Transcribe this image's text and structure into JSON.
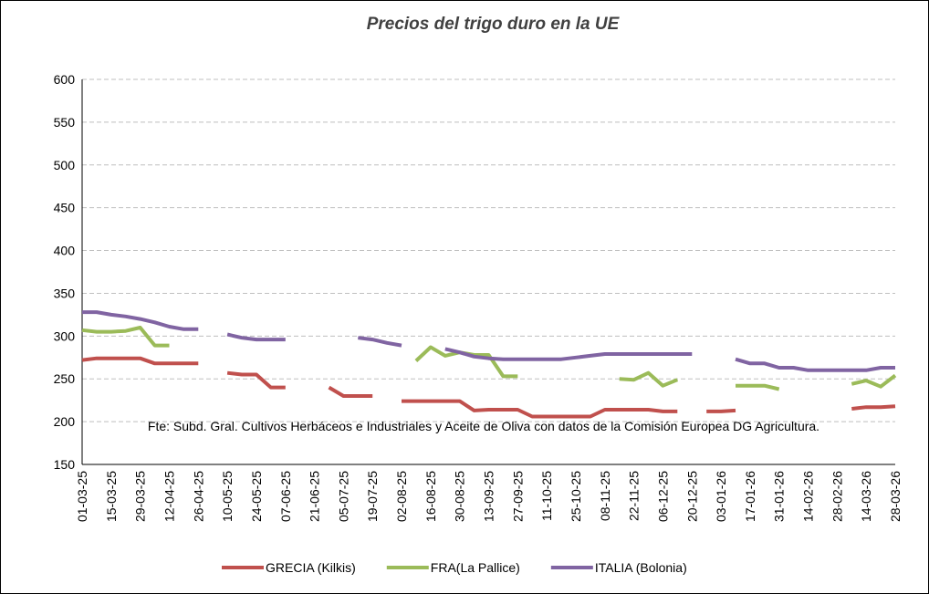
{
  "chart_data": {
    "type": "line",
    "title": "Precios del trigo duro en la UE",
    "annotation": "Fte: Subd. Gral. Cultivos Herbáceos e Industriales y Aceite de Oliva con datos de la Comisión Europea DG Agricultura.",
    "categories": [
      "01-03-25",
      null,
      "15-03-25",
      null,
      "29-03-25",
      null,
      "12-04-25",
      null,
      "26-04-25",
      null,
      "10-05-25",
      null,
      "24-05-25",
      null,
      "07-06-25",
      null,
      "21-06-25",
      null,
      "05-07-25",
      null,
      "19-07-25",
      null,
      "02-08-25",
      null,
      "16-08-25",
      null,
      "30-08-25",
      null,
      "13-09-25",
      null,
      "27-09-25",
      null,
      "11-10-25",
      null,
      "25-10-25",
      null,
      "08-11-25",
      null,
      "22-11-25",
      null,
      "06-12-25",
      null,
      "20-12-25",
      null,
      "03-01-26",
      null,
      "17-01-26",
      null,
      "31-01-26",
      null,
      "14-02-26",
      null,
      "28-02-26",
      null,
      "14-03-26",
      null,
      "28-03-26"
    ],
    "series": [
      {
        "name": "GRECIA (Kilkis)",
        "color": "#c0504d",
        "values": [
          272,
          274,
          274,
          274,
          274,
          268,
          268,
          268,
          268,
          null,
          257,
          255,
          255,
          240,
          240,
          null,
          null,
          240,
          230,
          230,
          230,
          null,
          224,
          224,
          224,
          224,
          224,
          213,
          214,
          214,
          214,
          206,
          206,
          206,
          206,
          206,
          214,
          214,
          214,
          214,
          212,
          212,
          null,
          212,
          212,
          213,
          null,
          null,
          null,
          null,
          null,
          null,
          null,
          215,
          217,
          217,
          218
        ]
      },
      {
        "name": "FRA(La Pallice)",
        "color": "#9bbb59",
        "values": [
          307,
          305,
          305,
          306,
          310,
          289,
          289,
          null,
          null,
          null,
          null,
          null,
          null,
          null,
          null,
          null,
          null,
          null,
          null,
          null,
          null,
          null,
          null,
          271,
          287,
          277,
          281,
          278,
          278,
          253,
          253,
          null,
          null,
          null,
          null,
          null,
          null,
          250,
          249,
          257,
          242,
          249,
          null,
          null,
          null,
          242,
          242,
          242,
          238,
          null,
          null,
          null,
          null,
          244,
          248,
          241,
          254
        ]
      },
      {
        "name": "ITALIA (Bolonia)",
        "color": "#8064a2",
        "values": [
          328,
          328,
          325,
          323,
          320,
          316,
          311,
          308,
          308,
          null,
          302,
          298,
          296,
          296,
          296,
          null,
          null,
          null,
          null,
          298,
          296,
          292,
          289,
          null,
          null,
          285,
          281,
          276,
          274,
          273,
          273,
          273,
          273,
          273,
          275,
          277,
          279,
          279,
          279,
          279,
          279,
          279,
          279,
          null,
          null,
          273,
          268,
          268,
          263,
          263,
          260,
          260,
          260,
          260,
          260,
          263,
          263
        ]
      }
    ],
    "ylim": [
      150,
      600
    ],
    "yticks": [
      150,
      200,
      250,
      300,
      350,
      400,
      450,
      500,
      550,
      600
    ],
    "grid": true,
    "legend": "bottom"
  }
}
